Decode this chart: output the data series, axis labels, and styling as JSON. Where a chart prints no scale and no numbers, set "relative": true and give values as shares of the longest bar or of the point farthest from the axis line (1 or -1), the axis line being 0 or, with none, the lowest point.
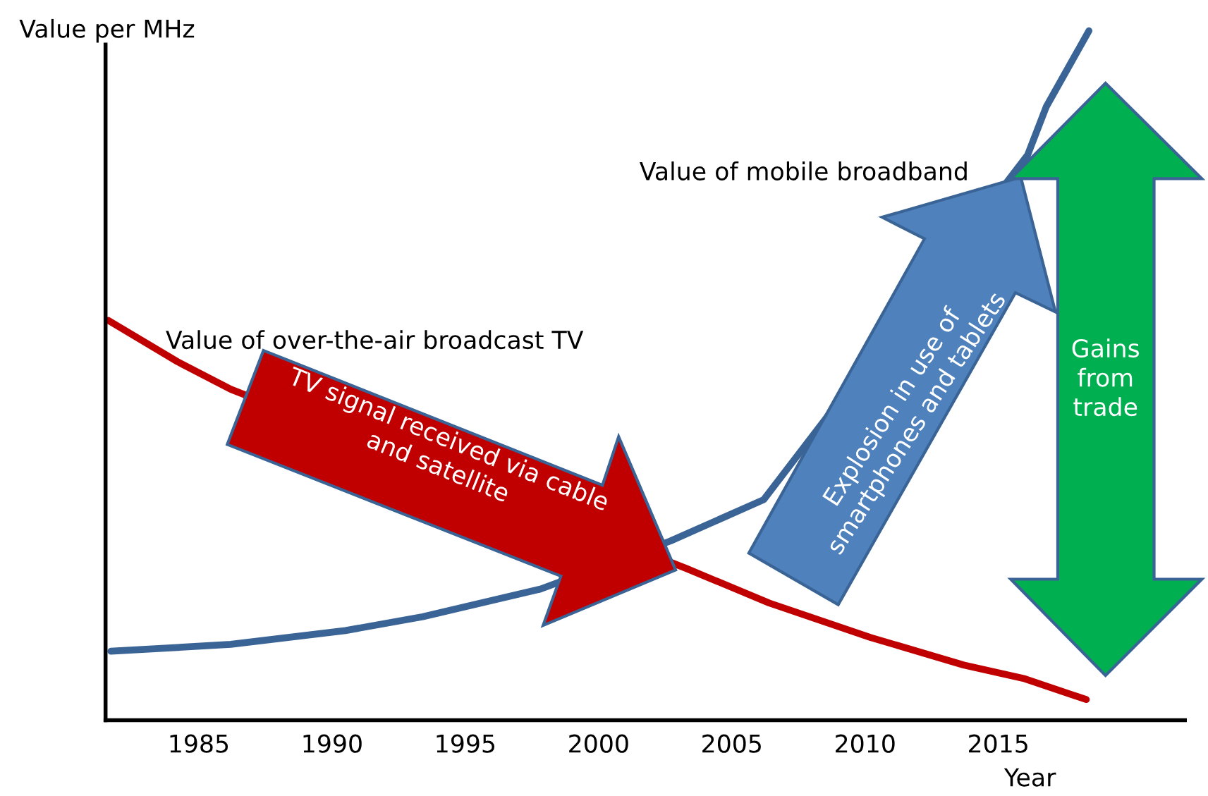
{
  "chart_data": {
    "type": "line",
    "relative": true,
    "ylabel": "Value per MHz",
    "xlabel": "Year",
    "xlim": [
      1981.5,
      2022
    ],
    "xticks": [
      1985,
      1990,
      1995,
      2000,
      2005,
      2010,
      2015
    ],
    "legend": false,
    "grid": false,
    "marker": "none",
    "line_style": "solid",
    "series": [
      {
        "name": "Value of mobile broadband",
        "color": "#3a6496",
        "x": [
          1981.7,
          1986.2,
          1990.5,
          1993.4,
          1997.8,
          2002.7,
          2006.2,
          2016.1,
          2016.8,
          2018.4
        ],
        "values": [
          0.1,
          0.11,
          0.13,
          0.15,
          0.19,
          0.26,
          0.32,
          0.82,
          0.89,
          1.0
        ]
      },
      {
        "name": "Value of over-the-air broadcast TV",
        "color": "#c00000",
        "x": [
          1981.6,
          1984.2,
          1986.2,
          2003.3,
          2006.4,
          2010.2,
          2013.7,
          2016.0,
          2018.3
        ],
        "values": [
          0.58,
          0.52,
          0.48,
          0.22,
          0.17,
          0.12,
          0.08,
          0.06,
          0.03
        ]
      }
    ],
    "annotations": [
      "TV signal received via cable\nand satellite",
      "Explosion in use of\nsmartphones and tablets",
      "Gains\nfrom\ntrade"
    ]
  }
}
